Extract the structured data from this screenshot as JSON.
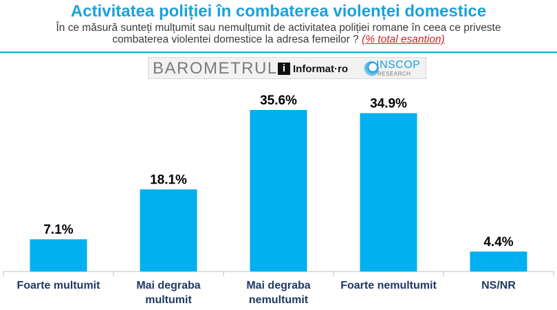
{
  "chart_data": {
    "type": "bar",
    "title": "Activitatea poliției în combaterea violenței domestice",
    "subtitle_line1": "În ce măsură sunteți mulțumit sau nemulțumit de activitatea poliției romane în ceea ce priveste",
    "subtitle_line2": "combaterea violentei domestice la adresa femeilor ?",
    "subtitle_note": "(% total esantion)",
    "categories": [
      [
        "Foarte multumit"
      ],
      [
        "Mai degraba",
        "multumit"
      ],
      [
        "Mai degraba",
        "nemultumit"
      ],
      [
        "Foarte nemultumit"
      ],
      [
        "NS/NR"
      ]
    ],
    "values": [
      7.1,
      18.1,
      35.6,
      34.9,
      4.4
    ],
    "value_labels": [
      "7.1%",
      "18.1%",
      "35.6%",
      "34.9%",
      "4.4%"
    ],
    "ylim": [
      0,
      40
    ],
    "grid": false,
    "colors": {
      "bar": "#00b0f0",
      "title": "#1ba1db",
      "axis": "#bfbfbf"
    }
  },
  "logos": {
    "barometrul": "BAROMETRUL",
    "informat": "Informat",
    "informat_suffix": "ro",
    "inscop": "INSCOP",
    "inscop_sub": "RESEARCH"
  }
}
